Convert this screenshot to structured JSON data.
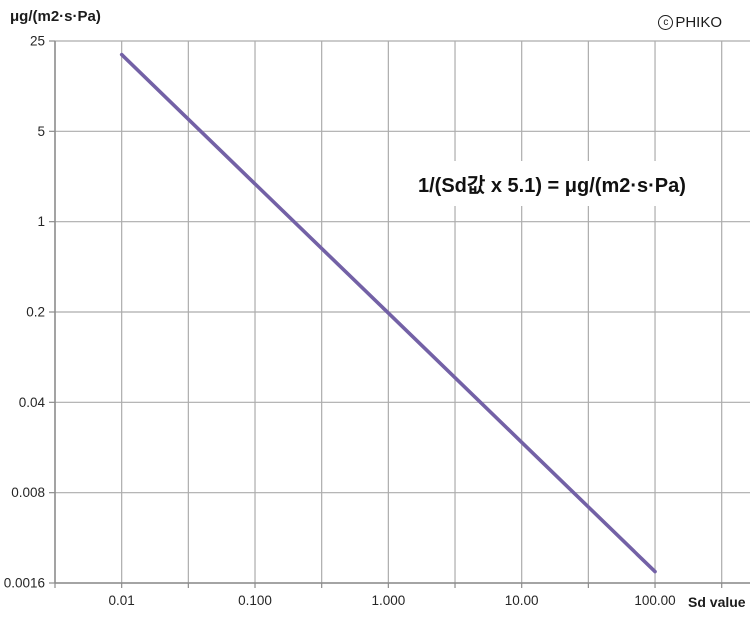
{
  "texts": {
    "y_axis_title": "μg/(m2·s·Pa)",
    "x_axis_title": "Sd value",
    "annotation": "1/(Sd값 x 5.1) = μg/(m2·s·Pa)",
    "copyright_symbol": "c",
    "copyright_name": "PHIKO"
  },
  "colors": {
    "line": "#7361A6",
    "grid": "#ACACAC",
    "axis": "#8C8C8C",
    "text": "#262626",
    "background": "#FFFFFF"
  },
  "chart_data": {
    "type": "line",
    "title": "",
    "xlabel": "Sd value",
    "ylabel": "μg/(m2·s·Pa)",
    "x_scale": "log",
    "y_scale": "log",
    "xlim": [
      0.00316,
      516
    ],
    "ylim": [
      0.0016,
      25
    ],
    "grid": true,
    "legend_position": "none",
    "x_ticks": [
      {
        "value": 0.01,
        "label": "0.01"
      },
      {
        "value": 0.1,
        "label": "0.100"
      },
      {
        "value": 1,
        "label": "1.000"
      },
      {
        "value": 10,
        "label": "10.00"
      },
      {
        "value": 100,
        "label": "100.00"
      }
    ],
    "y_ticks": [
      {
        "value": 25,
        "label": "25"
      },
      {
        "value": 5,
        "label": "5"
      },
      {
        "value": 1,
        "label": "1"
      },
      {
        "value": 0.2,
        "label": "0.2"
      },
      {
        "value": 0.04,
        "label": "0.04"
      },
      {
        "value": 0.008,
        "label": "0.008"
      },
      {
        "value": 0.0016,
        "label": "0.0016"
      }
    ],
    "series": [
      {
        "name": "1/(Sd값 x 5.1)",
        "formula": "y = 1 / (Sd × 5.1)",
        "color": "#7361A6",
        "points": [
          [
            0.01,
            19.6078
          ],
          [
            0.1,
            1.96078
          ],
          [
            1,
            0.196078
          ],
          [
            10,
            0.0196078
          ],
          [
            100,
            0.00196078
          ]
        ]
      }
    ]
  }
}
